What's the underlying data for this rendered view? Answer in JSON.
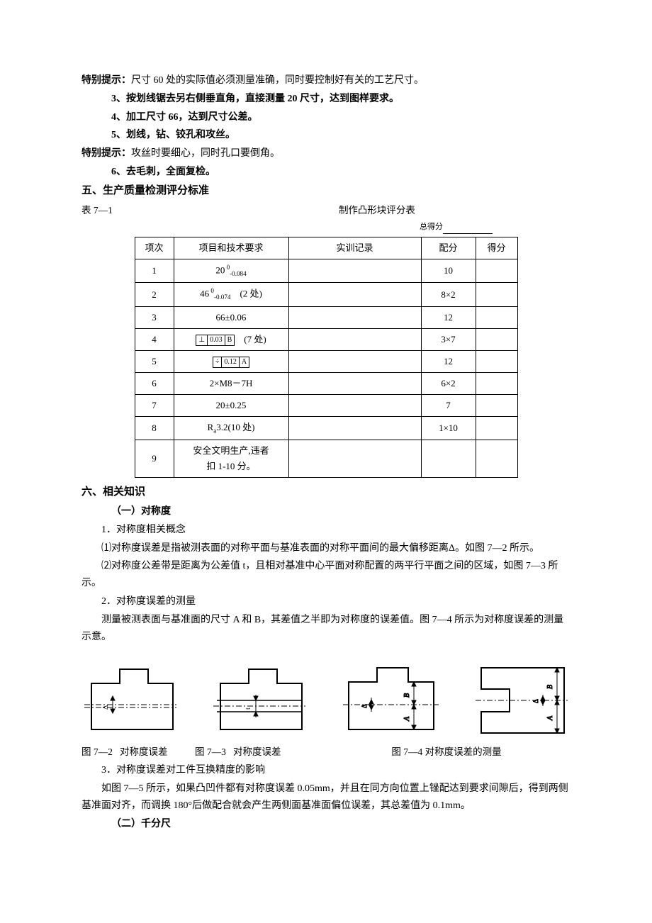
{
  "tip1_label": "特别提示：",
  "tip1_text": "尺寸 60 处的实际值必须测量准确，同时要控制好有关的工艺尺寸。",
  "step3": "3、按划线锯去另右侧垂直角，直接测量 20 尺寸，达到图样要求。",
  "step4": "4、加工尺寸 66，达到尺寸公差。",
  "step5": "5、划线，钻、铰孔和攻丝。",
  "tip2_label": "特别提示：",
  "tip2_text": "攻丝时要细心，同时孔口要倒角。",
  "step6": "6、去毛刺，全面复检。",
  "h5": "五、生产质量检测评分标准",
  "table_label": "表 7—1",
  "table_title": "制作凸形块评分表",
  "total_score_label": "总得分",
  "th_idx": "项次",
  "th_req": "项目和技术要求",
  "th_rec": "实训记录",
  "th_pts": "配分",
  "th_score": "得分",
  "rows": [
    {
      "idx": "1",
      "req_html": "20<sup> 0</sup><sub>-0.084</sub>",
      "pts": "10"
    },
    {
      "idx": "2",
      "req_html": "46<sup> 0</sup><sub>-0.074</sub>　(2 处)",
      "pts": "8×2"
    },
    {
      "idx": "3",
      "req_html": "66±0.06",
      "pts": "12"
    },
    {
      "idx": "4",
      "req_html": "<span class=\"gd-symbol\"><span>⊥</span><span>0.03</span><span>B</span></span>　(7 处)",
      "pts": "3×7"
    },
    {
      "idx": "5",
      "req_html": "<span class=\"gd-symbol\"><span>÷</span><span>0.12</span><span>A</span></span>",
      "pts": "12"
    },
    {
      "idx": "6",
      "req_html": "2×M8－7H",
      "pts": "6×2"
    },
    {
      "idx": "7",
      "req_html": "20±0.25",
      "pts": "7"
    },
    {
      "idx": "8",
      "req_html": "R<sub>a</sub>3.2(10 处)",
      "pts": "1×10"
    },
    {
      "idx": "9",
      "req_html": "安全文明生产,违者<br>扣 1-10 分。",
      "pts": ""
    }
  ],
  "h6": "六、相关知识",
  "h6_1": "（一）对称度",
  "p6_1_1": "1．对称度相关概念",
  "p6_1_1_a": "⑴对称度误差是指被测表面的对称平面与基准表面的对称平面间的最大偏移距离Δ。如图 7—2 所示。",
  "p6_1_1_b": "⑵对称度公差带是距离为公差值 t，且相对基准中心平面对称配置的两平行平面之间的区域，如图 7—3 所示。",
  "p6_1_2": "2．对称度误差的测量",
  "p6_1_2_a": "测量被测表面与基准面的尺寸 A 和 B，其差值之半即为对称度的误差值。图 7—4 所示为对称度误差的测量示意。",
  "cap72": "图 7—2   对称度误差",
  "cap73": "图 7—3   对称度误差",
  "cap74": "图 7—4 对称度误差的测量",
  "p6_1_3": "3．对称度误差对工件互换精度的影响",
  "p6_1_3_a": "如图 7—5 所示，如果凸凹件都有对称度误差 0.05mm，并且在同方向位置上锉配达到要求间隙后，得到两侧基准面对齐，而调换 180°后做配合就会产生两侧面基准面偏位误差，其总差值为 0.1mm。",
  "h6_2": "（二）千分尺"
}
